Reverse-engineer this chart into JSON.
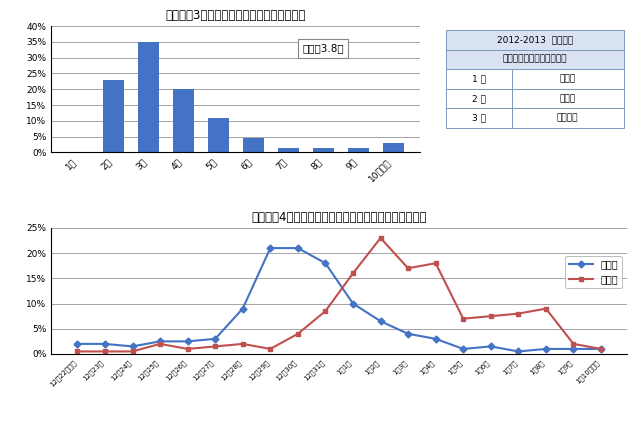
{
  "chart1_title": "（グラフ3）　国内旅行の旅行期間（予定）",
  "chart1_categories": [
    "1日",
    "2日",
    "3日",
    "4日",
    "5日",
    "6日",
    "7日",
    "8日",
    "9日",
    "10日以上"
  ],
  "chart1_values": [
    0.0,
    23,
    35,
    20,
    11,
    4.5,
    1.5,
    1.5,
    1.5,
    3
  ],
  "chart1_bar_color": "#4472C4",
  "chart1_yticks": [
    0,
    5,
    10,
    15,
    20,
    25,
    30,
    35,
    40
  ],
  "chart1_annotation": "平均：3.8日",
  "table_title1": "2012-2013  年末年始",
  "table_title2": "旅行先ランキング（国内）",
  "table_rows": [
    [
      "1 位",
      "北海道"
    ],
    [
      "2 位",
      "静岡県"
    ],
    [
      "3 位",
      "神奈川県"
    ]
  ],
  "chart2_title": "（グラフ4）　国内旅行・帰省予定者の出発日と帰着日",
  "chart2_categories": [
    "12月22日以前",
    "12月23日",
    "12月24日",
    "12月25日",
    "12月26日",
    "12月27日",
    "12月28日",
    "12月29日",
    "12月30日",
    "12月31日",
    "1月1日",
    "1月2日",
    "1月3日",
    "1月4日",
    "1月5日",
    "1月6日",
    "1月7日",
    "1月8日",
    "1月9日",
    "1月10日以降"
  ],
  "chart2_departure": [
    2,
    2,
    1.5,
    2.5,
    2.5,
    3,
    9,
    21,
    21,
    18,
    10,
    6.5,
    4,
    3,
    1,
    1.5,
    0.5,
    1,
    1,
    1
  ],
  "chart2_arrival": [
    0.5,
    0.5,
    0.5,
    2,
    1,
    1.5,
    2,
    1,
    4,
    8.5,
    16,
    23,
    17,
    18,
    7,
    7.5,
    8,
    9,
    2,
    1
  ],
  "chart2_yticks": [
    0,
    5,
    10,
    15,
    20,
    25
  ],
  "departure_color": "#4472C4",
  "arrival_color": "#C0504D",
  "legend_departure": "出発日",
  "legend_arrival": "帰着日",
  "bg_color": "#FFFFFF"
}
